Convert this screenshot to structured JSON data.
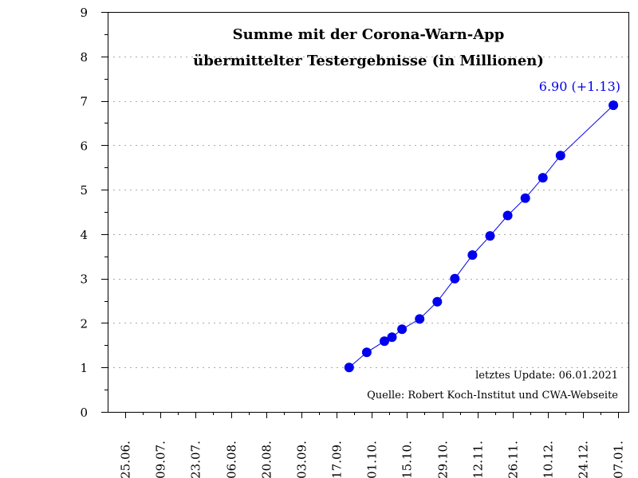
{
  "chart_data": {
    "type": "line",
    "title_line1": "Summe mit der Corona-Warn-App",
    "title_line2": "übermittelter Testergebnisse (in Millionen)",
    "xlabel": "",
    "ylabel": "",
    "ylim": [
      0,
      9
    ],
    "yticks": [
      0,
      1,
      2,
      3,
      4,
      5,
      6,
      7,
      8,
      9
    ],
    "x_ticks": [
      "25.06.",
      "09.07.",
      "23.07.",
      "06.08.",
      "20.08.",
      "03.09.",
      "17.09.",
      "01.10.",
      "15.10.",
      "29.10.",
      "12.11.",
      "26.11.",
      "10.12.",
      "24.12.",
      "07.01."
    ],
    "x_tick_dates": [
      "2020-06-25",
      "2020-07-09",
      "2020-07-23",
      "2020-08-06",
      "2020-08-20",
      "2020-09-03",
      "2020-09-17",
      "2020-10-01",
      "2020-10-15",
      "2020-10-29",
      "2020-11-12",
      "2020-11-26",
      "2020-12-10",
      "2020-12-24",
      "2021-01-07"
    ],
    "xlim": [
      "2020-06-18",
      "2021-01-11"
    ],
    "grid": "horizontal-dotted",
    "color": "#0000ee",
    "series": [
      {
        "points": [
          {
            "x": "2020-09-22",
            "y": 1.0
          },
          {
            "x": "2020-09-29",
            "y": 1.34
          },
          {
            "x": "2020-10-06",
            "y": 1.59
          },
          {
            "x": "2020-10-09",
            "y": 1.68
          },
          {
            "x": "2020-10-13",
            "y": 1.86
          },
          {
            "x": "2020-10-20",
            "y": 2.09
          },
          {
            "x": "2020-10-27",
            "y": 2.48
          },
          {
            "x": "2020-11-03",
            "y": 3.0
          },
          {
            "x": "2020-11-10",
            "y": 3.53
          },
          {
            "x": "2020-11-17",
            "y": 3.96
          },
          {
            "x": "2020-11-24",
            "y": 4.42
          },
          {
            "x": "2020-12-01",
            "y": 4.81
          },
          {
            "x": "2020-12-08",
            "y": 5.27
          },
          {
            "x": "2020-12-15",
            "y": 5.77
          },
          {
            "x": "2021-01-05",
            "y": 6.9
          }
        ]
      }
    ],
    "last_value_label": "6.90 (+1.13)",
    "update_note": "letztes Update: 06.01.2021",
    "source_note": "Quelle: Robert Koch-Institut und CWA-Webseite"
  }
}
